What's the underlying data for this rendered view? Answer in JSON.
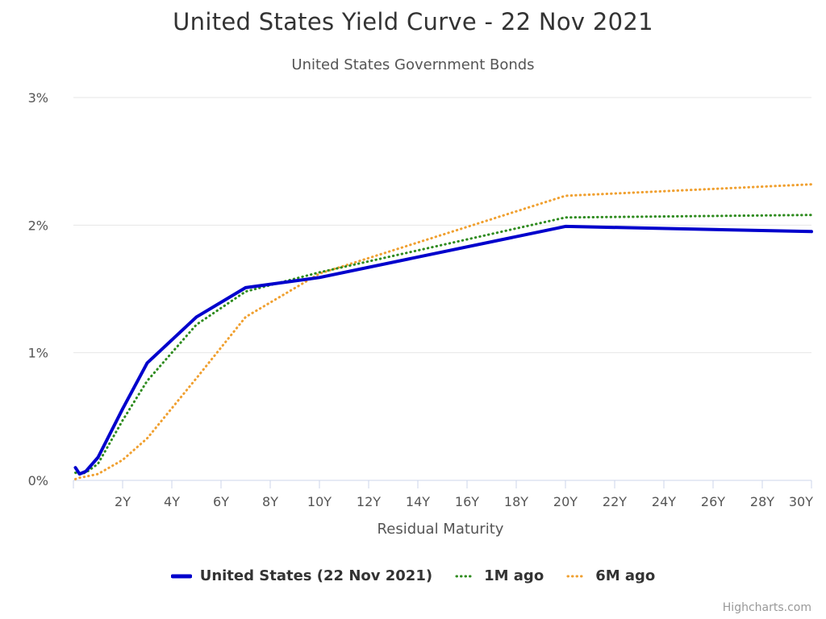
{
  "chart_data": {
    "type": "line",
    "title": "United States Yield Curve - 22 Nov 2021",
    "subtitle": "United States Government Bonds",
    "xlabel": "Residual Maturity",
    "ylabel": "",
    "xlim": [
      0,
      30
    ],
    "ylim": [
      0,
      3
    ],
    "x_ticks": [
      {
        "value": 2,
        "label": "2Y"
      },
      {
        "value": 4,
        "label": "4Y"
      },
      {
        "value": 6,
        "label": "6Y"
      },
      {
        "value": 8,
        "label": "8Y"
      },
      {
        "value": 10,
        "label": "10Y"
      },
      {
        "value": 12,
        "label": "12Y"
      },
      {
        "value": 14,
        "label": "14Y"
      },
      {
        "value": 16,
        "label": "16Y"
      },
      {
        "value": 18,
        "label": "18Y"
      },
      {
        "value": 20,
        "label": "20Y"
      },
      {
        "value": 22,
        "label": "22Y"
      },
      {
        "value": 24,
        "label": "24Y"
      },
      {
        "value": 26,
        "label": "26Y"
      },
      {
        "value": 28,
        "label": "28Y"
      },
      {
        "value": 30,
        "label": "30Y"
      }
    ],
    "y_ticks": [
      {
        "value": 0,
        "label": "0%"
      },
      {
        "value": 1,
        "label": "1%"
      },
      {
        "value": 2,
        "label": "2%"
      },
      {
        "value": 3,
        "label": "3%"
      }
    ],
    "grid": true,
    "legend_position": "bottom-center",
    "series": [
      {
        "name": "United States (22 Nov 2021)",
        "color": "#0000cc",
        "style": "solid",
        "x": [
          0.083,
          0.25,
          0.5,
          1,
          2,
          3,
          5,
          7,
          10,
          20,
          30
        ],
        "y": [
          0.1,
          0.05,
          0.07,
          0.18,
          0.56,
          0.92,
          1.28,
          1.51,
          1.59,
          1.99,
          1.95
        ]
      },
      {
        "name": "1M ago",
        "color": "#2e8b1e",
        "style": "dotted",
        "x": [
          0.083,
          0.25,
          0.5,
          1,
          2,
          3,
          5,
          7,
          10,
          20,
          30
        ],
        "y": [
          0.06,
          0.05,
          0.06,
          0.13,
          0.47,
          0.78,
          1.22,
          1.48,
          1.63,
          2.06,
          2.08
        ]
      },
      {
        "name": "6M ago",
        "color": "#f0a030",
        "style": "dotted",
        "x": [
          0.083,
          0.25,
          0.5,
          1,
          2,
          3,
          5,
          7,
          10,
          20,
          30
        ],
        "y": [
          0.01,
          0.02,
          0.03,
          0.05,
          0.16,
          0.33,
          0.8,
          1.28,
          1.62,
          2.23,
          2.32
        ]
      }
    ]
  },
  "credits": "Highcharts.com"
}
